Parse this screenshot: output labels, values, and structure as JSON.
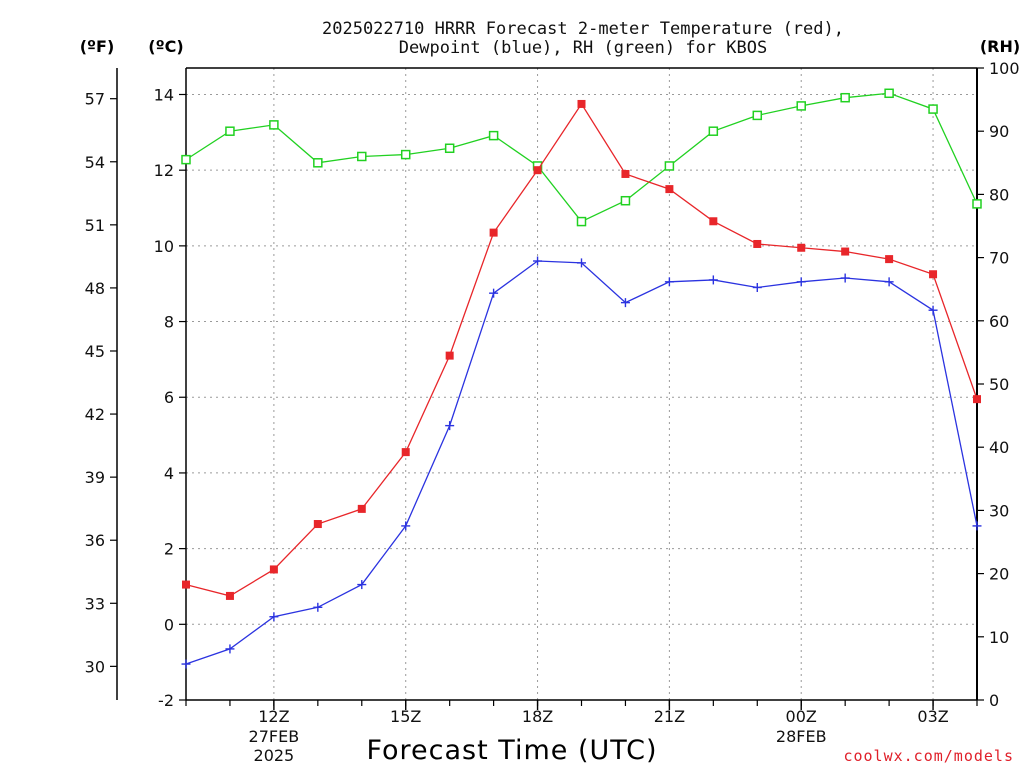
{
  "title_line1": "2025022710 HRRR Forecast 2-meter Temperature (red),",
  "title_line2": "Dewpoint (blue), RH (green) for KBOS",
  "units": {
    "f": "(ºF)",
    "c": "(ºC)",
    "rh": "(RH)"
  },
  "xlabel": "Forecast Time (UTC)",
  "credit": "coolwx.com/models",
  "colors": {
    "temperature": "#e8262a",
    "dewpoint": "#2b33e0",
    "rh": "#21d121"
  },
  "chart_data": {
    "type": "line",
    "title": "2025022710 HRRR Forecast 2-meter Temperature (red), Dewpoint (blue), RH (green) for KBOS",
    "xlabel": "Forecast Time (UTC)",
    "x": [
      "10Z",
      "11Z",
      "12Z",
      "13Z",
      "14Z",
      "15Z",
      "16Z",
      "17Z",
      "18Z",
      "19Z",
      "20Z",
      "21Z",
      "22Z",
      "23Z",
      "00Z",
      "01Z",
      "02Z",
      "03Z",
      "04Z"
    ],
    "x_ticks": [
      {
        "label": "12Z",
        "sub": [
          "27FEB",
          "2025"
        ]
      },
      {
        "label": "15Z",
        "sub": []
      },
      {
        "label": "18Z",
        "sub": []
      },
      {
        "label": "21Z",
        "sub": []
      },
      {
        "label": "00Z",
        "sub": [
          "28FEB"
        ]
      },
      {
        "label": "03Z",
        "sub": []
      }
    ],
    "y_celsius_ticks": [
      "-2",
      "0",
      "2",
      "4",
      "6",
      "8",
      "10",
      "12",
      "14"
    ],
    "y_fahrenheit_ticks": [
      "30",
      "33",
      "36",
      "39",
      "42",
      "45",
      "48",
      "51",
      "54",
      "57"
    ],
    "y_rh_ticks": [
      "0",
      "10",
      "20",
      "30",
      "40",
      "50",
      "60",
      "70",
      "80",
      "90",
      "100"
    ],
    "ylim_celsius": [
      -2,
      14.7
    ],
    "ylim_rh": [
      0,
      100
    ],
    "grid": true,
    "series": [
      {
        "name": "Temperature",
        "unit": "C",
        "values": [
          1.05,
          0.75,
          1.45,
          2.65,
          3.05,
          4.55,
          7.1,
          10.35,
          12.0,
          13.75,
          11.9,
          11.5,
          10.65,
          10.05,
          9.95,
          9.85,
          9.65,
          9.25,
          5.95
        ]
      },
      {
        "name": "Dewpoint",
        "unit": "C",
        "values": [
          -1.05,
          -0.65,
          0.2,
          0.45,
          1.05,
          2.6,
          5.25,
          8.75,
          9.6,
          9.55,
          8.5,
          9.05,
          9.1,
          8.9,
          9.05,
          9.15,
          9.05,
          8.3,
          2.6
        ]
      },
      {
        "name": "RH",
        "unit": "%",
        "values": [
          85.5,
          90.0,
          91.0,
          85.0,
          86.0,
          86.3,
          87.3,
          89.3,
          84.5,
          75.7,
          79.0,
          84.5,
          90.0,
          92.5,
          94.0,
          95.3,
          96.0,
          93.5,
          78.5
        ]
      }
    ]
  }
}
